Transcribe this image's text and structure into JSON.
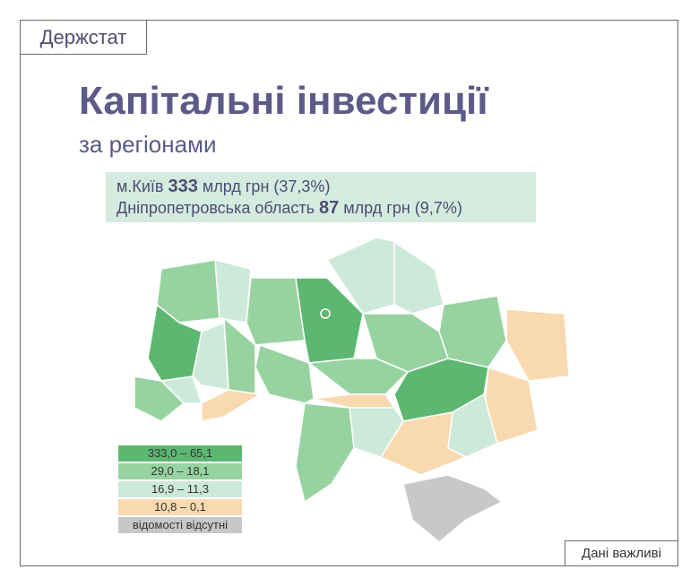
{
  "header": {
    "source": "Держстат"
  },
  "title": "Капітальні інвестиції",
  "subtitle": "за регіонами",
  "highlights": [
    {
      "region": "м.Київ",
      "value": "333",
      "unit": "млрд грн",
      "share": "(37,3%)"
    },
    {
      "region": "Дніпропетровська область",
      "value": "87",
      "unit": "млрд грн",
      "share": "(9,7%)"
    }
  ],
  "legend": [
    "333,0 – 65,1",
    "29,0 – 18,1",
    "16,9 – 11,3",
    "10,8 – 0,1",
    "відомості відсутні"
  ],
  "footer": "Дані важливі"
}
